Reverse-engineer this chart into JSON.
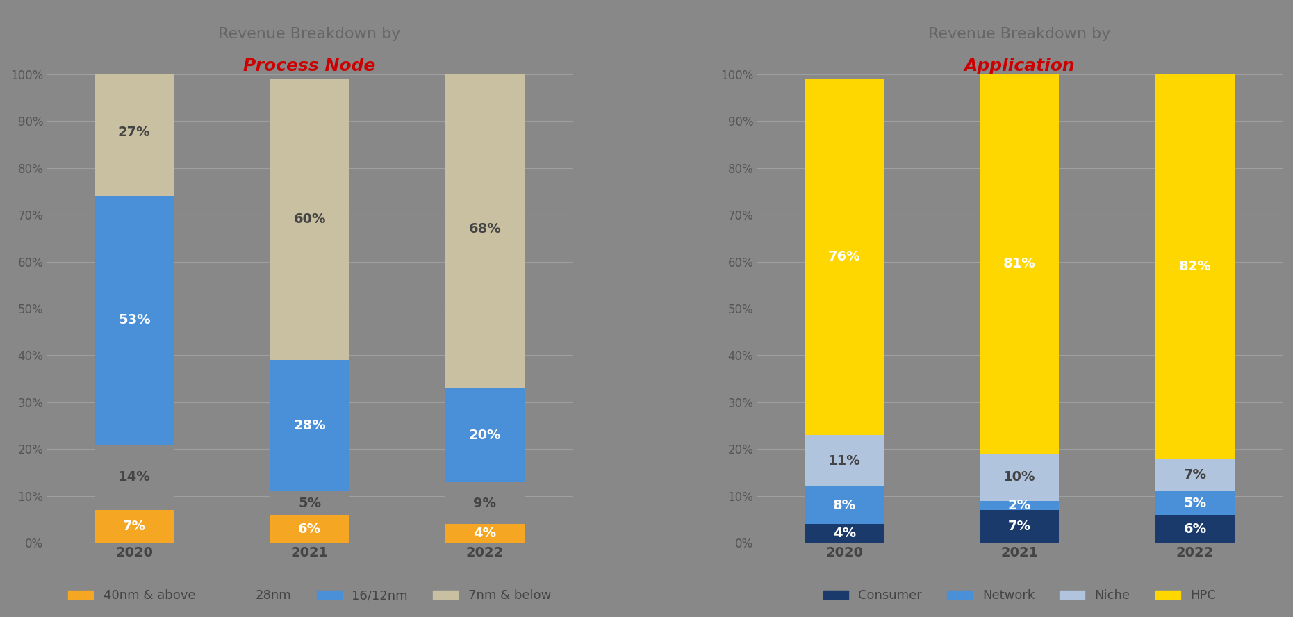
{
  "chart1_title_line1": "Revenue Breakdown by",
  "chart1_title_line2": "Process Node",
  "chart2_title_line1": "Revenue Breakdown by",
  "chart2_title_line2": "Application",
  "years": [
    "2020",
    "2021",
    "2022"
  ],
  "process_node": {
    "40nm_above": [
      7,
      6,
      4
    ],
    "28nm": [
      14,
      5,
      9
    ],
    "16_12nm": [
      53,
      28,
      20
    ],
    "7nm_below": [
      27,
      60,
      68
    ]
  },
  "application": {
    "consumer": [
      4,
      7,
      6
    ],
    "network": [
      8,
      2,
      5
    ],
    "niche": [
      11,
      10,
      7
    ],
    "hpc": [
      76,
      81,
      82
    ]
  },
  "colors": {
    "40nm_above": "#F5A623",
    "28nm": "#888888",
    "16_12nm": "#4A90D9",
    "7nm_below": "#C8C0A0",
    "consumer": "#1A3A6B",
    "network": "#4A90D9",
    "niche": "#B0C4DE",
    "hpc": "#FFD700"
  },
  "light_text_colors": [
    "#C8C0A0",
    "#B0C4DE",
    "#888888"
  ],
  "bg_color": "#888888",
  "title_color": "#666666",
  "red_color": "#CC0000",
  "gridline_color": "#AAAAAA",
  "label_fontsize": 14,
  "title_fontsize": 16,
  "tick_fontsize": 12,
  "legend_fontsize": 13,
  "pn_keys": [
    "40nm_above",
    "28nm",
    "16_12nm",
    "7nm_below"
  ],
  "app_keys": [
    "consumer",
    "network",
    "niche",
    "hpc"
  ],
  "pn_labels": [
    "40nm & above",
    "28nm",
    "16/12nm",
    "7nm & below"
  ],
  "app_labels": [
    "Consumer",
    "Network",
    "Niche",
    "HPC"
  ]
}
